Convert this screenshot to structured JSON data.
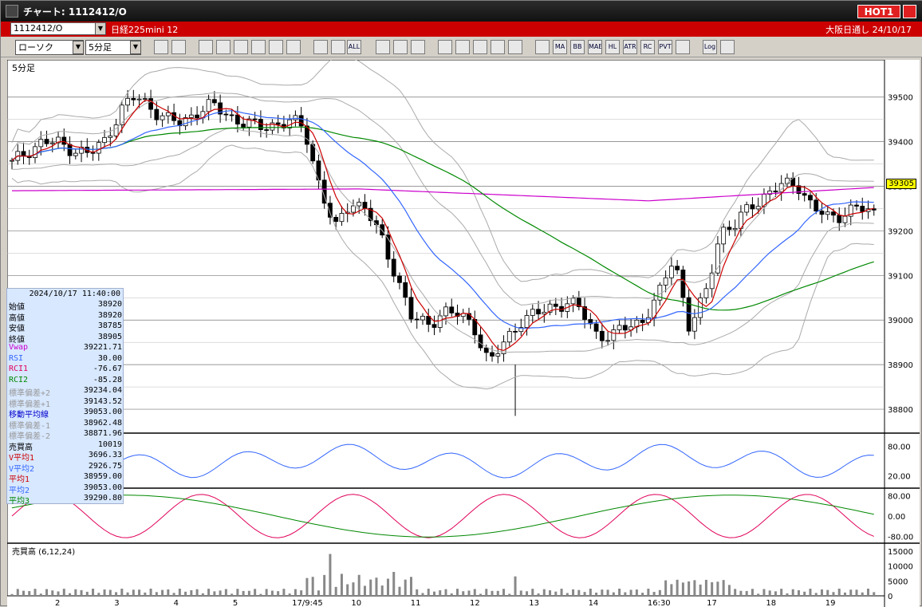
{
  "window": {
    "title": "チャート: 1112412/O",
    "hot_label": "HOT1"
  },
  "symbolbar": {
    "symbol": "1112412/O",
    "name": "日経225mini 12",
    "market": "大阪日通し",
    "date": "24/10/17"
  },
  "toolbar": {
    "chart_type": "ローソク",
    "period": "5分足",
    "button_labels": [
      "",
      "",
      "",
      "",
      "",
      "",
      "",
      "",
      "",
      "",
      "ALL",
      "",
      "",
      "",
      "",
      "",
      "",
      "",
      "",
      "",
      "MA",
      "BB",
      "MAE",
      "HL",
      "ATR",
      "RC",
      "PVT",
      "",
      "Log",
      ""
    ]
  },
  "chart": {
    "period_label": "5分足",
    "current_price_label": "39305",
    "price_axis": [
      "39500",
      "39400",
      "39300",
      "39200",
      "39100",
      "39000",
      "38900",
      "38800"
    ],
    "rsi_axis": [
      "80.00",
      "20.00"
    ],
    "rci_axis": [
      "80.00",
      "0.00",
      "-80.00"
    ],
    "volume_label": "売買高 (6,12,24)",
    "volume_axis": [
      "15000",
      "10000",
      "5000",
      "0"
    ],
    "time_axis": [
      "2",
      "3",
      "4",
      "5",
      "17/9:45",
      "10",
      "11",
      "12",
      "13",
      "14",
      "16:30",
      "17",
      "18",
      "19"
    ]
  },
  "info": {
    "timestamp": "2024/10/17  11:40:00",
    "rows": [
      {
        "k": "始値",
        "v": "38920",
        "c": "#000000"
      },
      {
        "k": "高値",
        "v": "38920",
        "c": "#000000"
      },
      {
        "k": "安値",
        "v": "38785",
        "c": "#000000"
      },
      {
        "k": "終値",
        "v": "38905",
        "c": "#000000"
      },
      {
        "k": "Vwap",
        "v": "39221.71",
        "c": "#cc00cc"
      },
      {
        "k": "RSI",
        "v": "30.00",
        "c": "#3366ff"
      },
      {
        "k": "RCI1",
        "v": "-76.67",
        "c": "#e0005a"
      },
      {
        "k": "RCI2",
        "v": "-85.28",
        "c": "#008800"
      },
      {
        "k": "標準偏差+2",
        "v": "39234.04",
        "c": "#999999"
      },
      {
        "k": "標準偏差+1",
        "v": "39143.52",
        "c": "#999999"
      },
      {
        "k": "移動平均線",
        "v": "39053.00",
        "c": "#0000cc"
      },
      {
        "k": "標準偏差-1",
        "v": "38962.48",
        "c": "#999999"
      },
      {
        "k": "標準偏差-2",
        "v": "38871.96",
        "c": "#999999"
      },
      {
        "k": "売買高",
        "v": "10019",
        "c": "#000000"
      },
      {
        "k": "V平均1",
        "v": "3696.33",
        "c": "#cc0000"
      },
      {
        "k": "V平均2",
        "v": "2926.75",
        "c": "#3366ff"
      },
      {
        "k": "平均1",
        "v": "38959.00",
        "c": "#cc0000"
      },
      {
        "k": "平均2",
        "v": "39053.00",
        "c": "#3366ff"
      },
      {
        "k": "平均3",
        "v": "39290.80",
        "c": "#008800"
      }
    ]
  },
  "colors": {
    "up": "#ffffff",
    "down": "#000000",
    "ma_short": "#cc0000",
    "ma_mid": "#3366ff",
    "ma_long": "#008800",
    "vwap": "#cc00cc",
    "band": "#aaaaaa"
  },
  "chart_data": {
    "type": "candlestick",
    "ylim": [
      38750,
      39580
    ],
    "close_path": [
      39350,
      39380,
      39400,
      39395,
      39385,
      39370,
      39400,
      39470,
      39500,
      39480,
      39450,
      39440,
      39470,
      39480,
      39460,
      39445,
      39430,
      39440,
      39445,
      39430,
      39300,
      39200,
      39270,
      39250,
      39180,
      39100,
      39000,
      38990,
      39020,
      39010,
      38990,
      38900,
      38950,
      39000,
      39010,
      39030,
      39040,
      39020,
      38970,
      38960,
      38990,
      39000,
      39050,
      39150,
      38980,
      39050,
      39200,
      39210,
      39260,
      39280,
      39300,
      39310,
      39250,
      39230,
      39240,
      39250,
      39240
    ]
  }
}
